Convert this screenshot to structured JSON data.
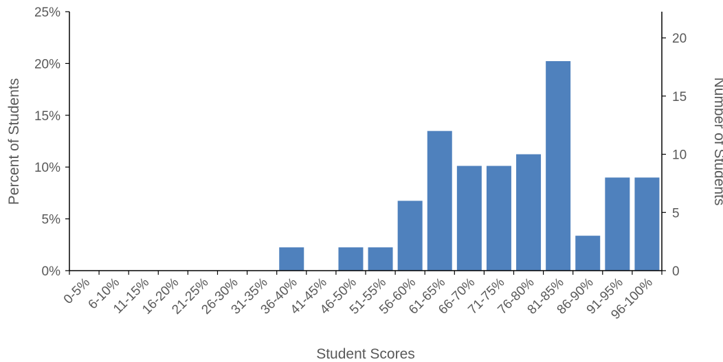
{
  "chart_data": {
    "type": "bar",
    "categories": [
      "0-5%",
      "6-10%",
      "11-15%",
      "16-20%",
      "21-25%",
      "26-30%",
      "31-35%",
      "36-40%",
      "41-45%",
      "46-50%",
      "51-55%",
      "56-60%",
      "61-65%",
      "66-70%",
      "71-75%",
      "76-80%",
      "81-85%",
      "86-90%",
      "91-95%",
      "96-100%"
    ],
    "values": [
      0,
      0,
      0,
      0,
      0,
      0,
      0,
      2,
      0,
      2,
      2,
      6,
      12,
      9,
      9,
      10,
      18,
      3,
      8,
      8
    ],
    "xlabel": "Student Scores",
    "ylabel": "Percent of Students",
    "y2label": "Number of Students",
    "ylim": [
      0,
      25
    ],
    "y2lim": [
      0,
      22.25
    ],
    "yticks": [
      "0%",
      "5%",
      "10%",
      "15%",
      "20%",
      "25%"
    ],
    "y2ticks": [
      "0",
      "5",
      "10",
      "15",
      "20"
    ],
    "grid": false,
    "bar_color": "#4f81bd"
  }
}
